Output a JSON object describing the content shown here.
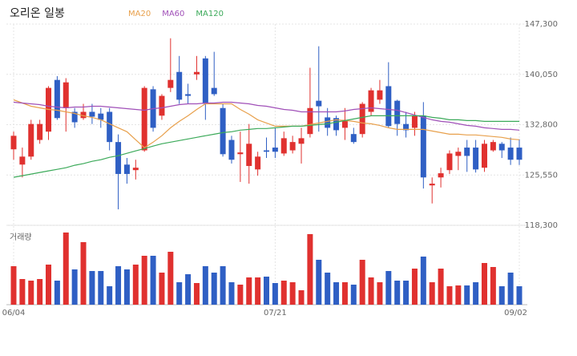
{
  "chart_data": {
    "type": "candlestick",
    "title": "오리온 일봉",
    "categories": [
      "06/04",
      null,
      null,
      null,
      null,
      null,
      null,
      null,
      null,
      null,
      null,
      null,
      null,
      null,
      null,
      null,
      null,
      null,
      null,
      null,
      null,
      null,
      null,
      null,
      null,
      null,
      null,
      null,
      null,
      null,
      "07/21",
      null,
      null,
      null,
      null,
      null,
      null,
      null,
      null,
      null,
      null,
      null,
      null,
      null,
      null,
      null,
      null,
      null,
      null,
      null,
      null,
      null,
      null,
      null,
      null,
      null,
      null,
      null,
      "09/02"
    ],
    "open": [
      129250,
      127050,
      128200,
      130600,
      131800,
      139250,
      135200,
      134650,
      133750,
      134650,
      134400,
      134650,
      130300,
      127050,
      126250,
      129100,
      137900,
      134100,
      138100,
      140400,
      137200,
      140050,
      142350,
      138100,
      135200,
      130600,
      128550,
      126850,
      126350,
      129100,
      129500,
      128650,
      129100,
      130050,
      131450,
      136250,
      133850,
      133750,
      132350,
      131450,
      131450,
      134650,
      136400,
      138350,
      136250,
      132900,
      132350,
      134100,
      124050,
      125200,
      126250,
      128300,
      129500,
      129500,
      126600,
      129100,
      130050,
      129500,
      129500
    ],
    "high": [
      131800,
      129500,
      133500,
      133500,
      138350,
      139800,
      139500,
      135200,
      135800,
      135800,
      135200,
      135200,
      131400,
      128000,
      127750,
      138350,
      138350,
      137200,
      145250,
      142700,
      138700,
      142700,
      142700,
      143300,
      135800,
      131200,
      131800,
      132900,
      128900,
      130950,
      132350,
      131800,
      131200,
      132350,
      141000,
      144100,
      135200,
      134100,
      135200,
      132350,
      136050,
      138100,
      139250,
      141800,
      136400,
      134650,
      134650,
      136050,
      125200,
      126600,
      129100,
      129500,
      130600,
      130600,
      130600,
      130600,
      130300,
      130950,
      130700
    ],
    "low": [
      127750,
      125200,
      127750,
      130050,
      130600,
      133500,
      131800,
      132350,
      133500,
      132900,
      132350,
      129100,
      120600,
      124300,
      124900,
      128900,
      131800,
      133500,
      137500,
      135800,
      135800,
      139250,
      133500,
      136950,
      128200,
      127200,
      124550,
      124300,
      125450,
      128000,
      128000,
      128300,
      128650,
      127200,
      130950,
      131800,
      131200,
      131200,
      130600,
      130050,
      130950,
      134100,
      135800,
      132350,
      131200,
      130950,
      131200,
      123600,
      121450,
      123750,
      125700,
      126250,
      126000,
      125900,
      126000,
      128900,
      128000,
      127000,
      127000
    ],
    "close": [
      131200,
      128200,
      132900,
      132900,
      138100,
      133750,
      138900,
      133150,
      134650,
      133950,
      133500,
      130300,
      125700,
      125700,
      126600,
      138100,
      132350,
      136950,
      139250,
      136400,
      136950,
      140400,
      135800,
      137200,
      128550,
      127750,
      128800,
      130050,
      128200,
      128900,
      128900,
      130850,
      130300,
      130850,
      135200,
      135450,
      132350,
      132000,
      133500,
      130300,
      135800,
      137750,
      137750,
      132600,
      132900,
      132000,
      134100,
      125200,
      124300,
      125800,
      128650,
      128900,
      128300,
      126350,
      130050,
      130300,
      129100,
      127750,
      127750
    ],
    "up_color": "#e0312f",
    "down_color": "#2f5fc4",
    "series": [
      {
        "name": "MA20",
        "color": "#e8a04c",
        "values": [
          136380,
          135920,
          135460,
          135230,
          135000,
          134880,
          134650,
          134420,
          134080,
          133850,
          133500,
          132930,
          132350,
          131780,
          130630,
          129480,
          130280,
          131200,
          132350,
          133270,
          134080,
          135000,
          135800,
          135800,
          135800,
          135800,
          135000,
          134310,
          133500,
          133040,
          132580,
          132580,
          132580,
          132580,
          132810,
          133040,
          133270,
          133500,
          133390,
          133270,
          133040,
          132930,
          132700,
          132350,
          132120,
          132120,
          132120,
          132120,
          131890,
          131660,
          131430,
          131430,
          131320,
          131320,
          131200,
          131090,
          130970,
          130740,
          130630
        ]
      },
      {
        "name": "MA60",
        "color": "#a050b8",
        "values": [
          136030,
          135920,
          135800,
          135690,
          135460,
          135340,
          135230,
          135340,
          135340,
          135460,
          135460,
          135340,
          135230,
          135110,
          135000,
          134880,
          135110,
          135230,
          135460,
          135690,
          135800,
          135800,
          135920,
          135920,
          136030,
          136030,
          135920,
          135800,
          135570,
          135460,
          135230,
          135000,
          134880,
          134650,
          134650,
          134650,
          134650,
          134650,
          134770,
          135000,
          135110,
          135230,
          135110,
          135000,
          134880,
          134540,
          134190,
          133850,
          133500,
          133270,
          133160,
          132930,
          132700,
          132580,
          132350,
          132240,
          132120,
          132120,
          132010
        ]
      },
      {
        "name": "MA120",
        "color": "#3caa5a",
        "values": [
          125220,
          125450,
          125680,
          125910,
          126140,
          126370,
          126600,
          126950,
          127180,
          127520,
          127750,
          128100,
          128330,
          128670,
          129020,
          129360,
          129710,
          130050,
          130280,
          130510,
          130740,
          130970,
          131200,
          131430,
          131660,
          131780,
          132010,
          132120,
          132240,
          132240,
          132350,
          132470,
          132580,
          132580,
          132700,
          132810,
          132930,
          133160,
          133390,
          133620,
          133850,
          134080,
          134080,
          134080,
          134080,
          134080,
          134080,
          134080,
          133850,
          133730,
          133500,
          133500,
          133390,
          133390,
          133270,
          133270,
          133270,
          133270,
          133270
        ]
      }
    ],
    "ylim": [
      118300,
      147300
    ],
    "yticks": [
      {
        "value": 118300,
        "label": "118,300"
      },
      {
        "value": 125550,
        "label": "125,550"
      },
      {
        "value": 132800,
        "label": "132,800"
      },
      {
        "value": 140050,
        "label": "140,050"
      },
      {
        "value": 147300,
        "label": "147,300"
      }
    ],
    "grid": true,
    "volume": {
      "label": "거래량",
      "values": [
        48,
        32,
        30,
        32,
        50,
        30,
        90,
        44,
        78,
        42,
        42,
        23,
        48,
        44,
        50,
        61,
        61,
        40,
        66,
        28,
        38,
        27,
        48,
        40,
        48,
        28,
        25,
        34,
        34,
        35,
        27,
        30,
        28,
        18,
        88,
        56,
        40,
        28,
        28,
        25,
        56,
        34,
        28,
        42,
        30,
        30,
        45,
        60,
        28,
        45,
        23,
        24,
        24,
        28,
        52,
        47,
        23,
        40,
        23
      ],
      "ylim": [
        0,
        90
      ]
    }
  }
}
